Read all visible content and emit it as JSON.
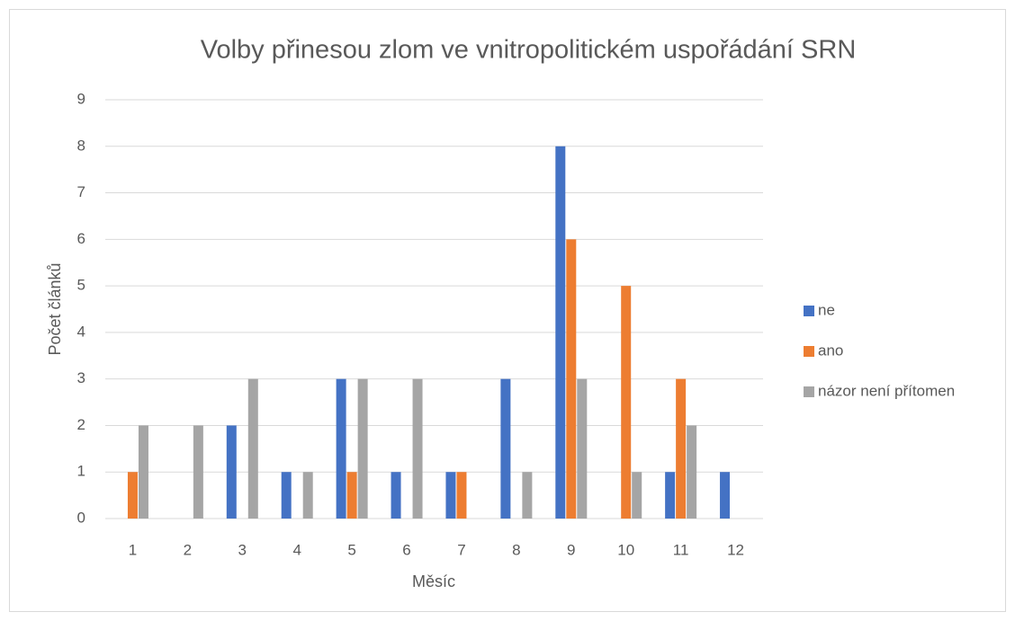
{
  "chart_data": {
    "type": "bar",
    "title": "Volby přinesou zlom ve vnitropolitickém uspořádání SRN",
    "x_label": "Měsíc",
    "y_label": "Počet článků",
    "categories": [
      "1",
      "2",
      "3",
      "4",
      "5",
      "6",
      "7",
      "8",
      "9",
      "10",
      "11",
      "12"
    ],
    "series": [
      {
        "name": "ne",
        "color": "#4472c4",
        "values": [
          0,
          0,
          2,
          1,
          3,
          1,
          1,
          3,
          8,
          0,
          1,
          1
        ]
      },
      {
        "name": "ano",
        "color": "#ed7d31",
        "values": [
          1,
          0,
          0,
          0,
          1,
          0,
          1,
          0,
          6,
          5,
          3,
          0
        ]
      },
      {
        "name": "názor není přítomen",
        "color": "#a5a5a5",
        "values": [
          2,
          2,
          3,
          1,
          3,
          3,
          0,
          1,
          3,
          1,
          2,
          0
        ]
      }
    ],
    "ylim": [
      0,
      9
    ],
    "yticks": [
      0,
      1,
      2,
      3,
      4,
      5,
      6,
      7,
      8,
      9
    ],
    "grid": true,
    "legend": "right"
  }
}
